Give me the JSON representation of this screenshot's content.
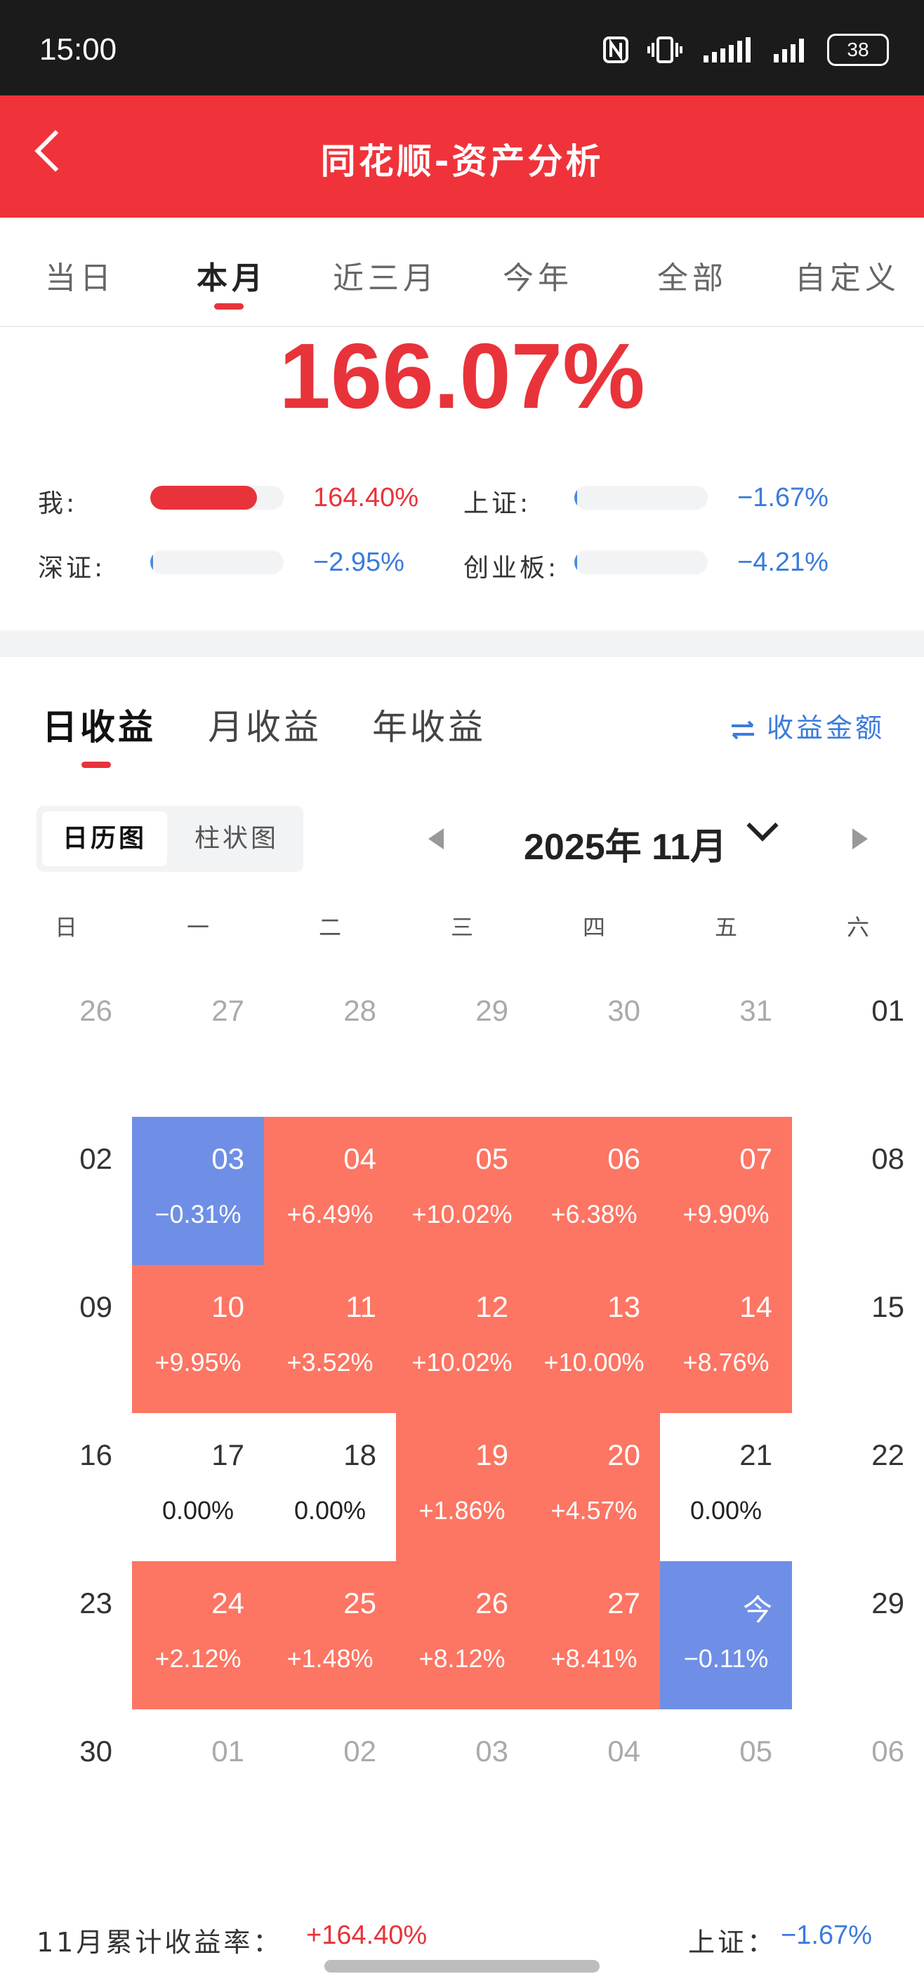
{
  "status_bar": {
    "time": "15:00",
    "battery": "38"
  },
  "header": {
    "title": "同花顺-资产分析"
  },
  "period_tabs": [
    {
      "label": "当日",
      "active": false
    },
    {
      "label": "本月",
      "active": true
    },
    {
      "label": "近三月",
      "active": false
    },
    {
      "label": "今年",
      "active": false
    },
    {
      "label": "全部",
      "active": false
    },
    {
      "label": "自定义",
      "active": false
    }
  ],
  "summary": {
    "total_return": "166.07%"
  },
  "comparisons": [
    {
      "label": "我:",
      "value": "164.40%",
      "color": "red",
      "fill": 0.8
    },
    {
      "label": "上证:",
      "value": "−1.67%",
      "color": "blue",
      "fill": 0
    },
    {
      "label": "深证:",
      "value": "−2.95%",
      "color": "blue",
      "fill": 0
    },
    {
      "label": "创业板:",
      "value": "−4.21%",
      "color": "blue",
      "fill": 0
    }
  ],
  "return_tabs": [
    {
      "label": "日收益",
      "active": true
    },
    {
      "label": "月收益",
      "active": false
    },
    {
      "label": "年收益",
      "active": false
    }
  ],
  "amount_toggle": {
    "icon": "swap-arrows-icon",
    "label": "收益金额"
  },
  "view_switch": {
    "calendar": "日历图",
    "bar": "柱状图"
  },
  "month_selector": {
    "label": "2025年 11月"
  },
  "weekdays": [
    "日",
    "一",
    "二",
    "三",
    "四",
    "五",
    "六"
  ],
  "calendar": [
    [
      {
        "day": "26",
        "pct": "",
        "type": "other"
      },
      {
        "day": "27",
        "pct": "",
        "type": "other"
      },
      {
        "day": "28",
        "pct": "",
        "type": "other"
      },
      {
        "day": "29",
        "pct": "",
        "type": "other"
      },
      {
        "day": "30",
        "pct": "",
        "type": "other"
      },
      {
        "day": "31",
        "pct": "",
        "type": "other"
      },
      {
        "day": "01",
        "pct": "",
        "type": "weekend"
      }
    ],
    [
      {
        "day": "02",
        "pct": "",
        "type": "weekend"
      },
      {
        "day": "03",
        "pct": "−0.31%",
        "type": "loss"
      },
      {
        "day": "04",
        "pct": "+6.49%",
        "type": "gain"
      },
      {
        "day": "05",
        "pct": "+10.02%",
        "type": "gain"
      },
      {
        "day": "06",
        "pct": "+6.38%",
        "type": "gain"
      },
      {
        "day": "07",
        "pct": "+9.90%",
        "type": "gain"
      },
      {
        "day": "08",
        "pct": "",
        "type": "weekend"
      }
    ],
    [
      {
        "day": "09",
        "pct": "",
        "type": "weekend"
      },
      {
        "day": "10",
        "pct": "+9.95%",
        "type": "gain"
      },
      {
        "day": "11",
        "pct": "+3.52%",
        "type": "gain"
      },
      {
        "day": "12",
        "pct": "+10.02%",
        "type": "gain"
      },
      {
        "day": "13",
        "pct": "+10.00%",
        "type": "gain"
      },
      {
        "day": "14",
        "pct": "+8.76%",
        "type": "gain"
      },
      {
        "day": "15",
        "pct": "",
        "type": "weekend"
      }
    ],
    [
      {
        "day": "16",
        "pct": "",
        "type": "weekend"
      },
      {
        "day": "17",
        "pct": "0.00%",
        "type": "flat"
      },
      {
        "day": "18",
        "pct": "0.00%",
        "type": "flat"
      },
      {
        "day": "19",
        "pct": "+1.86%",
        "type": "gain"
      },
      {
        "day": "20",
        "pct": "+4.57%",
        "type": "gain"
      },
      {
        "day": "21",
        "pct": "0.00%",
        "type": "flat"
      },
      {
        "day": "22",
        "pct": "",
        "type": "weekend"
      }
    ],
    [
      {
        "day": "23",
        "pct": "",
        "type": "weekend"
      },
      {
        "day": "24",
        "pct": "+2.12%",
        "type": "gain"
      },
      {
        "day": "25",
        "pct": "+1.48%",
        "type": "gain"
      },
      {
        "day": "26",
        "pct": "+8.12%",
        "type": "gain"
      },
      {
        "day": "27",
        "pct": "+8.41%",
        "type": "gain"
      },
      {
        "day": "今",
        "pct": "−0.11%",
        "type": "loss"
      },
      {
        "day": "29",
        "pct": "",
        "type": "weekend"
      }
    ],
    [
      {
        "day": "30",
        "pct": "",
        "type": "weekend"
      },
      {
        "day": "01",
        "pct": "",
        "type": "other"
      },
      {
        "day": "02",
        "pct": "",
        "type": "other"
      },
      {
        "day": "03",
        "pct": "",
        "type": "other"
      },
      {
        "day": "04",
        "pct": "",
        "type": "other"
      },
      {
        "day": "05",
        "pct": "",
        "type": "other"
      },
      {
        "day": "06",
        "pct": "",
        "type": "other"
      }
    ]
  ],
  "colors": {
    "gain": "#fd7563",
    "loss": "#6f8fe6",
    "accent": "#e8333a",
    "blue": "#3b7bdc"
  },
  "footer": {
    "cumulative_label": "11月累计收益率：",
    "cumulative_value": "+164.40%",
    "index_label": "上证：",
    "index_value": "−1.67%"
  }
}
